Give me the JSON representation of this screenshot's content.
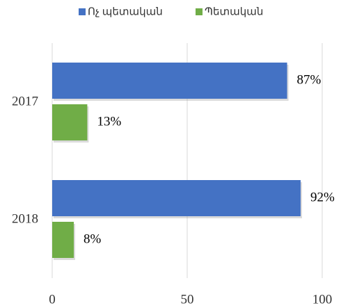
{
  "chart_data": {
    "type": "hbar",
    "categories": [
      "2017",
      "2018"
    ],
    "series": [
      {
        "name": "Ոչ պետական",
        "color": "#4472c4",
        "values": [
          87,
          92
        ],
        "value_labels": [
          "87%",
          "92%"
        ]
      },
      {
        "name": "Պետական",
        "color": "#70ad47",
        "values": [
          13,
          8
        ],
        "value_labels": [
          "13%",
          "8%"
        ]
      }
    ],
    "xlim": [
      0,
      100
    ],
    "xticks": [
      0,
      50,
      100
    ],
    "grid": true,
    "legend": "top"
  }
}
